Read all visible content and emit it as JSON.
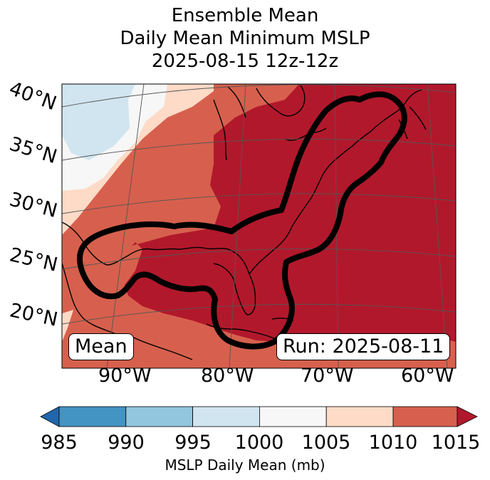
{
  "title": {
    "line1": "Ensemble Mean",
    "line2": "Daily Mean Minimum MSLP",
    "line3": "2025-08-15 12z-12z"
  },
  "map": {
    "lat_labels": [
      "40°N",
      "35°N",
      "30°N",
      "25°N",
      "20°N"
    ],
    "lon_labels": [
      "90°W",
      "80°W",
      "70°W",
      "60°W"
    ],
    "mean_label": "Mean",
    "run_label": "Run: 2025-08-11",
    "contour_color": "#000000",
    "field_colors": {
      "below_985": "#2166ac",
      "985_990": "#4393c3",
      "990_995": "#92c5de",
      "995_1000": "#d1e5f0",
      "1000_1005": "#f7f7f7",
      "1005_1010": "#fddbc7",
      "1010_1015": "#d6604d",
      "above_1015": "#b2182b"
    }
  },
  "colorbar": {
    "ticks": [
      "985",
      "990",
      "995",
      "1000",
      "1005",
      "1010",
      "1015"
    ],
    "colors": [
      "#4393c3",
      "#92c5de",
      "#d1e5f0",
      "#f7f7f7",
      "#fddbc7",
      "#d6604d"
    ],
    "under_color": "#2166ac",
    "over_color": "#b2182b",
    "label": "MSLP Daily Mean (mb)"
  }
}
